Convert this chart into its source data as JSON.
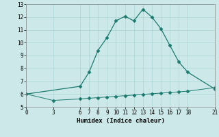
{
  "title": "",
  "xlabel": "Humidex (Indice chaleur)",
  "bg_color": "#cce8e8",
  "line_color": "#1a7a6e",
  "upper_x": [
    0,
    6,
    7,
    8,
    9,
    10,
    11,
    12,
    13,
    14,
    15,
    16,
    17,
    18,
    21
  ],
  "upper_y": [
    6.0,
    6.6,
    7.7,
    9.4,
    10.4,
    11.7,
    12.05,
    11.7,
    12.6,
    12.0,
    11.1,
    9.8,
    8.5,
    7.7,
    6.4
  ],
  "lower_x": [
    0,
    3,
    6,
    7,
    8,
    9,
    10,
    11,
    12,
    13,
    14,
    15,
    16,
    17,
    18,
    21
  ],
  "lower_y": [
    6.0,
    5.5,
    5.62,
    5.67,
    5.72,
    5.77,
    5.82,
    5.87,
    5.92,
    5.97,
    6.02,
    6.07,
    6.12,
    6.17,
    6.22,
    6.5
  ],
  "xlim": [
    0,
    21
  ],
  "ylim": [
    5,
    13
  ],
  "xticks": [
    0,
    3,
    6,
    7,
    8,
    9,
    10,
    11,
    12,
    13,
    14,
    15,
    16,
    17,
    18,
    21
  ],
  "yticks": [
    5,
    6,
    7,
    8,
    9,
    10,
    11,
    12,
    13
  ],
  "grid_color": "#aad4d4",
  "marker": "D",
  "markersize": 2.5,
  "tick_fontsize": 5.5,
  "xlabel_fontsize": 6.5
}
